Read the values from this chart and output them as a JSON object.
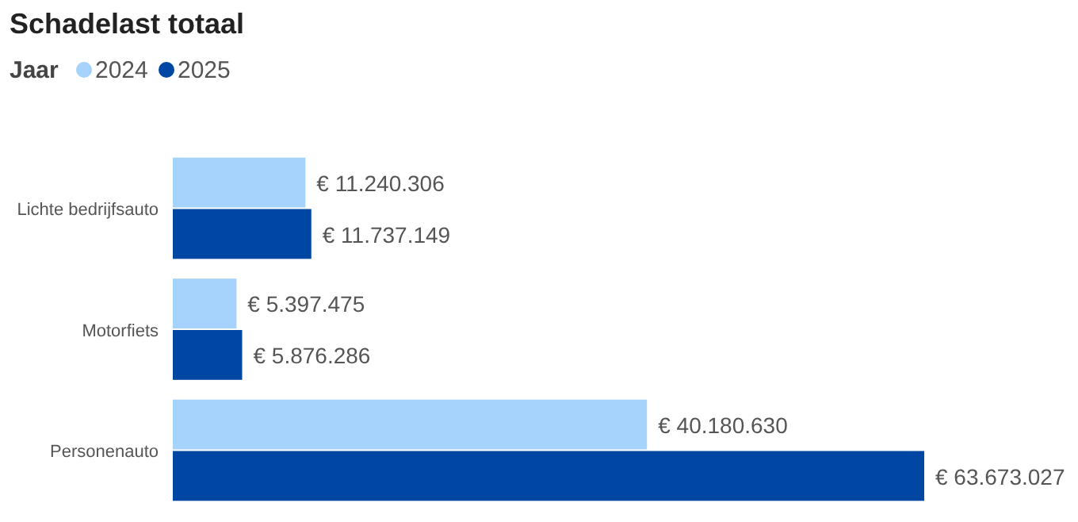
{
  "chart_data": {
    "type": "bar",
    "orientation": "horizontal",
    "title": "Schadelast totaal",
    "legend_title": "Jaar",
    "legend": "top left",
    "categories": [
      "Lichte bedrijfsauto",
      "Motorfiets",
      "Personenauto"
    ],
    "series": [
      {
        "name": "2024",
        "color": "#a6d3fb",
        "values": [
          11240306,
          5397475,
          40180630
        ],
        "value_labels": [
          "€ 11.240.306",
          "€ 5.397.475",
          "€ 40.180.630"
        ]
      },
      {
        "name": "2025",
        "color": "#0047a3",
        "values": [
          11737149,
          5876286,
          63673027
        ],
        "value_labels": [
          "€ 11.737.149",
          "€ 5.876.286",
          "€ 63.673.027"
        ]
      }
    ]
  }
}
